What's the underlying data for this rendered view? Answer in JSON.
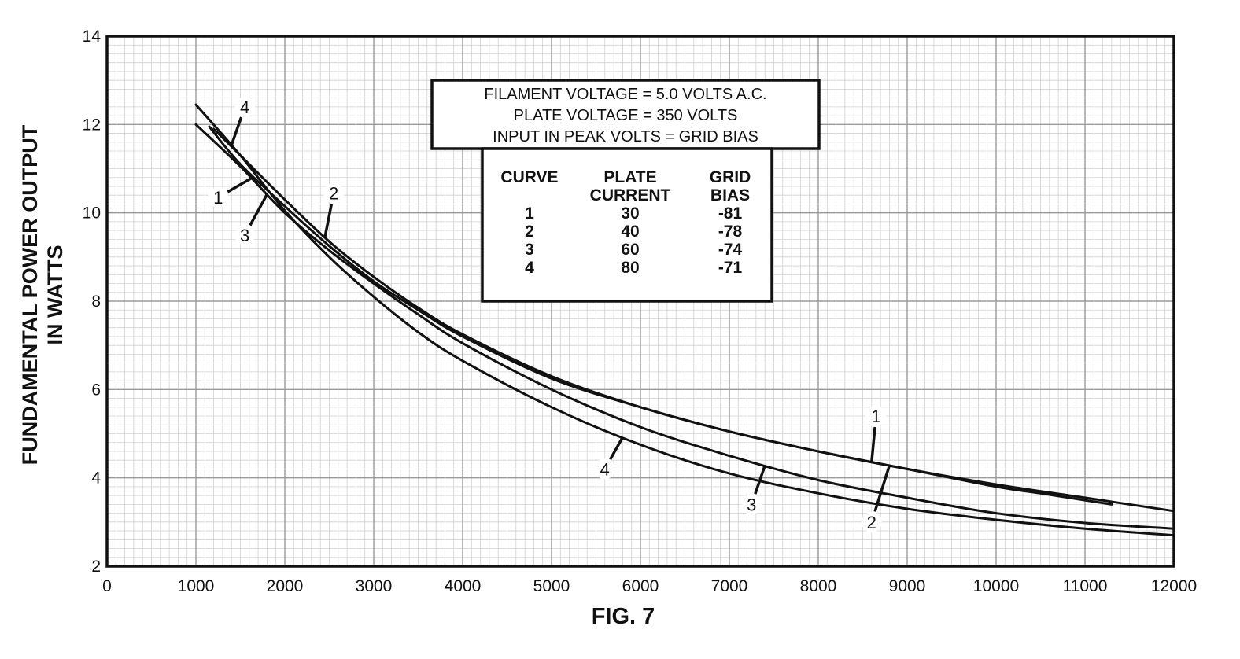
{
  "chart_data": {
    "type": "line",
    "title": "FIG. 7",
    "xlabel": "",
    "ylabel": [
      "FUNDAMENTAL POWER OUTPUT",
      "IN WATTS"
    ],
    "xlim": [
      0,
      12000
    ],
    "ylim": [
      2,
      14
    ],
    "x_ticks": [
      "0",
      "1000",
      "2000",
      "3000",
      "4000",
      "5000",
      "6000",
      "7000",
      "8000",
      "9000",
      "10000",
      "11000",
      "12000"
    ],
    "y_ticks": [
      "2",
      "4",
      "6",
      "8",
      "10",
      "12",
      "14"
    ],
    "grid": true,
    "notes": [
      "FILAMENT VOLTAGE = 5.0 VOLTS A.C.",
      "PLATE VOLTAGE = 350 VOLTS",
      "INPUT IN PEAK VOLTS = GRID BIAS"
    ],
    "table": {
      "headers": [
        [
          "CURVE"
        ],
        [
          "PLATE",
          "CURRENT"
        ],
        [
          "GRID",
          "BIAS"
        ]
      ],
      "rows": [
        [
          "1",
          "30",
          "-81"
        ],
        [
          "2",
          "40",
          "-78"
        ],
        [
          "3",
          "60",
          "-74"
        ],
        [
          "4",
          "80",
          "-71"
        ]
      ]
    },
    "series": [
      {
        "label": "1",
        "x": [
          1150,
          1500,
          2000,
          2500,
          3000,
          3500,
          4000,
          5000,
          6000,
          7000,
          8000,
          9000,
          10000,
          10500,
          11300
        ],
        "y": [
          11.95,
          11.1,
          10.15,
          9.25,
          8.45,
          7.8,
          7.2,
          6.25,
          5.6,
          5.05,
          4.6,
          4.2,
          3.8,
          3.65,
          3.4
        ]
      },
      {
        "label": "2",
        "x": [
          1200,
          1500,
          2000,
          2500,
          3000,
          3500,
          4000,
          5000,
          6000,
          7000,
          8000,
          9000,
          10000,
          11000,
          12000
        ],
        "y": [
          11.9,
          11.3,
          10.3,
          9.35,
          8.55,
          7.85,
          7.25,
          6.3,
          5.6,
          5.05,
          4.6,
          4.2,
          3.85,
          3.55,
          3.25
        ]
      },
      {
        "label": "3",
        "x": [
          1000,
          1500,
          2000,
          2500,
          3000,
          3500,
          4000,
          5000,
          6000,
          7000,
          8000,
          9000,
          10000,
          11000,
          12000
        ],
        "y": [
          12.0,
          11.05,
          10.0,
          9.15,
          8.4,
          7.7,
          7.05,
          6.0,
          5.15,
          4.5,
          3.95,
          3.55,
          3.2,
          2.98,
          2.85
        ]
      },
      {
        "label": "4",
        "x": [
          1000,
          1500,
          2000,
          2500,
          3000,
          3500,
          4000,
          5000,
          6000,
          7000,
          8000,
          9000,
          10000,
          11000,
          12000
        ],
        "y": [
          12.45,
          11.3,
          10.05,
          9.0,
          8.1,
          7.3,
          6.65,
          5.6,
          4.75,
          4.1,
          3.65,
          3.3,
          3.05,
          2.85,
          2.7
        ]
      }
    ],
    "curve_labels": [
      {
        "text": "4",
        "x": 1550,
        "y": 12.4
      },
      {
        "text": "1",
        "x": 1250,
        "y": 10.35
      },
      {
        "text": "3",
        "x": 1550,
        "y": 9.5
      },
      {
        "text": "2",
        "x": 2550,
        "y": 10.45
      },
      {
        "text": "1",
        "x": 8650,
        "y": 5.4
      },
      {
        "text": "2",
        "x": 8600,
        "y": 3.0
      },
      {
        "text": "3",
        "x": 7250,
        "y": 3.4
      },
      {
        "text": "4",
        "x": 5600,
        "y": 4.2
      }
    ]
  }
}
